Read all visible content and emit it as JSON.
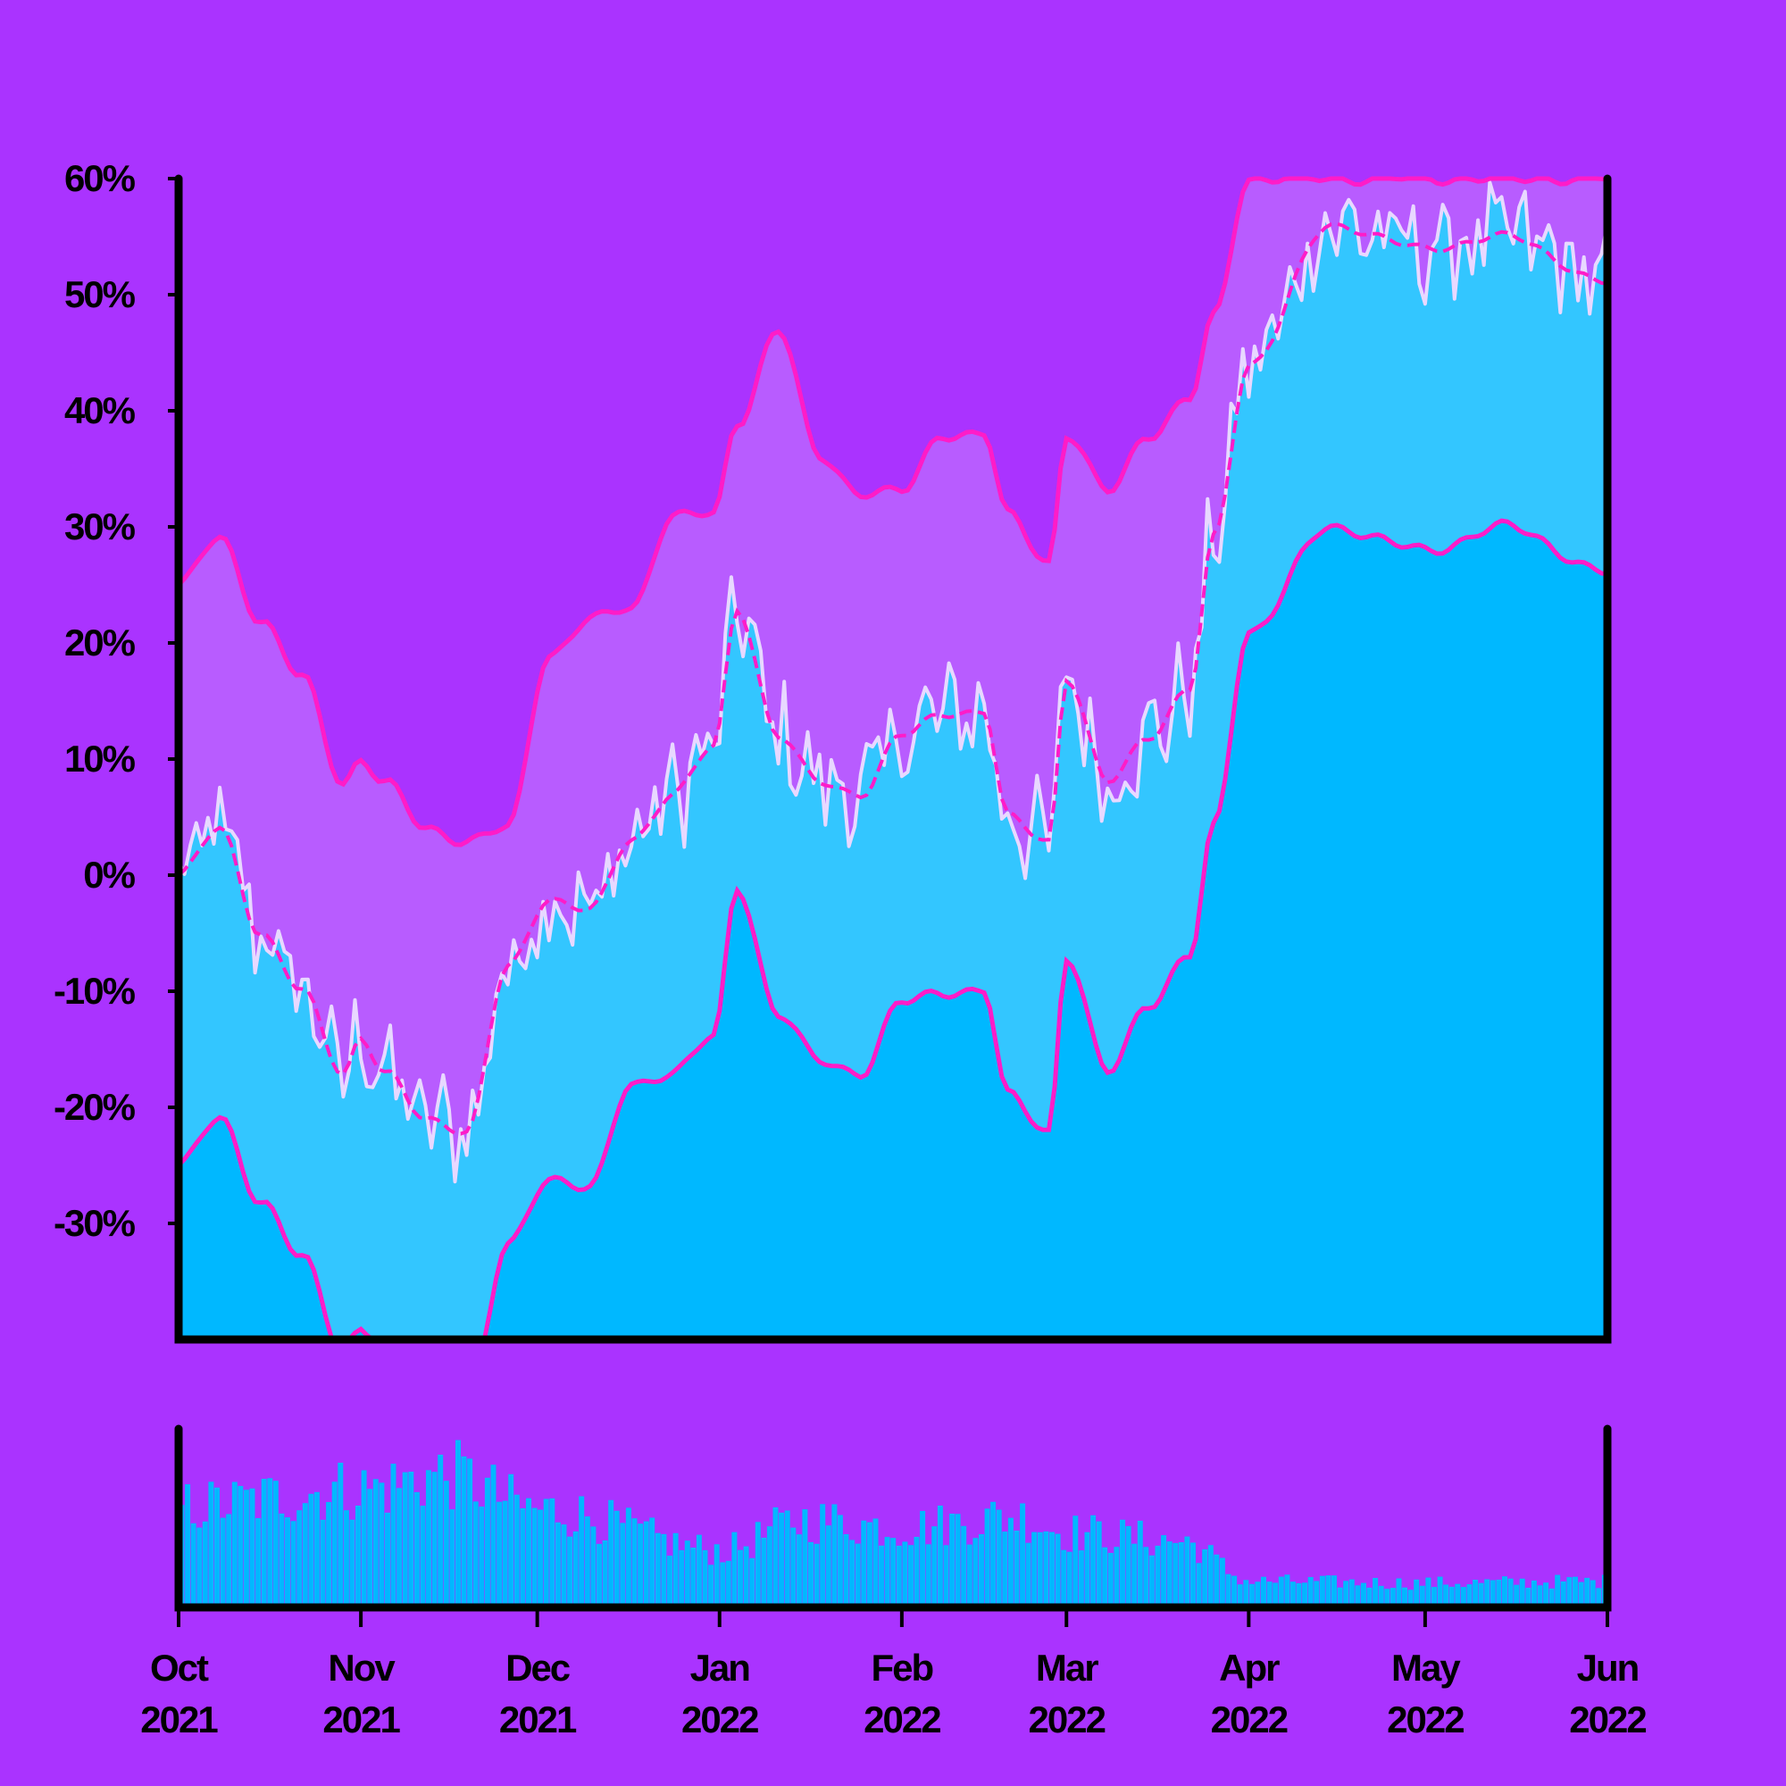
{
  "colors": {
    "background": "#aa33ff",
    "band_outer": "#b85cff",
    "band_inner": "#33c6ff",
    "area_lower": "#00b8ff",
    "noisy_line": "#e8d8ff",
    "accent_line": "#ff1cc8",
    "axis": "#000000",
    "volume_bars": "#00b8ff"
  },
  "chart_data": [
    {
      "type": "area",
      "title": "",
      "xlabel": "",
      "ylabel": "",
      "x_unit": "date",
      "x_range": [
        "2021-10-01",
        "2022-06-01"
      ],
      "ylim": [
        -40,
        60
      ],
      "y_unit": "%",
      "grid": false,
      "legend": "none",
      "yticks": [
        {
          "value": 60,
          "label": "60%"
        },
        {
          "value": 50,
          "label": "50%"
        },
        {
          "value": 40,
          "label": "40%"
        },
        {
          "value": 30,
          "label": "30%"
        },
        {
          "value": 20,
          "label": "20%"
        },
        {
          "value": 10,
          "label": "10%"
        },
        {
          "value": 0,
          "label": "0%"
        },
        {
          "value": -10,
          "label": "-10%"
        },
        {
          "value": -20,
          "label": "-20%"
        },
        {
          "value": -30,
          "label": "-30%"
        }
      ],
      "series": [
        {
          "role": "upper-band",
          "x": [
            "2021-10-01",
            "2021-10-08",
            "2021-10-15",
            "2021-10-22",
            "2021-10-29",
            "2021-11-01",
            "2021-11-05",
            "2021-11-12",
            "2021-11-19",
            "2021-11-26",
            "2021-12-03",
            "2021-12-10",
            "2021-12-17",
            "2021-12-24",
            "2021-12-31",
            "2022-01-04",
            "2022-01-11",
            "2022-01-18",
            "2022-01-25",
            "2022-02-01",
            "2022-02-08",
            "2022-02-15",
            "2022-02-19",
            "2022-02-26",
            "2022-03-01",
            "2022-03-08",
            "2022-03-15",
            "2022-03-22",
            "2022-03-26",
            "2022-04-01",
            "2022-04-15",
            "2022-05-01",
            "2022-05-15",
            "2022-06-01"
          ],
          "values": [
            25,
            29,
            22,
            17,
            8,
            10,
            8,
            4,
            3,
            4,
            19,
            22,
            23,
            31,
            31,
            39,
            47,
            36,
            33,
            33,
            38,
            38,
            31,
            27,
            38,
            33,
            38,
            41,
            48,
            60,
            60,
            60,
            60,
            60
          ]
        },
        {
          "role": "middle-line",
          "x": [
            "2021-10-01",
            "2021-10-08",
            "2021-10-15",
            "2021-10-22",
            "2021-10-29",
            "2021-11-01",
            "2021-11-05",
            "2021-11-12",
            "2021-11-19",
            "2021-11-26",
            "2021-12-03",
            "2021-12-10",
            "2021-12-17",
            "2021-12-24",
            "2021-12-31",
            "2022-01-04",
            "2022-01-11",
            "2022-01-18",
            "2022-01-25",
            "2022-02-01",
            "2022-02-08",
            "2022-02-15",
            "2022-02-19",
            "2022-02-26",
            "2022-03-01",
            "2022-03-08",
            "2022-03-15",
            "2022-03-22",
            "2022-03-26",
            "2022-04-01",
            "2022-04-15",
            "2022-05-01",
            "2022-05-15",
            "2022-06-01"
          ],
          "values": [
            0,
            4,
            -5,
            -10,
            -17,
            -14,
            -17,
            -21,
            -22,
            -8,
            -2,
            -3,
            3,
            7,
            11,
            23,
            12,
            8,
            7,
            12,
            14,
            14,
            5,
            3,
            17,
            8,
            12,
            16,
            29,
            44,
            56,
            54,
            55,
            51
          ]
        },
        {
          "role": "lower-band",
          "x": [
            "2021-10-01",
            "2021-10-08",
            "2021-10-15",
            "2021-10-22",
            "2021-10-29",
            "2021-11-01",
            "2021-11-05",
            "2021-11-12",
            "2021-11-19",
            "2021-11-26",
            "2021-12-03",
            "2021-12-10",
            "2021-12-17",
            "2021-12-24",
            "2021-12-31",
            "2022-01-04",
            "2022-01-11",
            "2022-01-18",
            "2022-01-25",
            "2022-02-01",
            "2022-02-08",
            "2022-02-15",
            "2022-02-19",
            "2022-02-26",
            "2022-03-01",
            "2022-03-08",
            "2022-03-15",
            "2022-03-22",
            "2022-03-26",
            "2022-04-01",
            "2022-04-15",
            "2022-05-01",
            "2022-05-15",
            "2022-06-01"
          ],
          "values": [
            -25,
            -21,
            -28,
            -33,
            -41,
            -39,
            -41,
            -45,
            -46,
            -32,
            -26,
            -27,
            -18,
            -17,
            -14,
            -1,
            -12,
            -16,
            -17,
            -11,
            -10,
            -10,
            -19,
            -22,
            -7,
            -17,
            -11,
            -7,
            4,
            21,
            30,
            28,
            30,
            26
          ]
        }
      ]
    },
    {
      "type": "bar",
      "title": "",
      "x_range": [
        "2021-10-01",
        "2022-06-01"
      ],
      "legend": "none",
      "grid": false,
      "xticks": [
        {
          "x": "2021-10-01",
          "line1": "Oct",
          "line2": "2021"
        },
        {
          "x": "2021-11-01",
          "line1": "Nov",
          "line2": "2021"
        },
        {
          "x": "2021-12-01",
          "line1": "Dec",
          "line2": "2021"
        },
        {
          "x": "2022-01-01",
          "line1": "Jan",
          "line2": "2022"
        },
        {
          "x": "2022-02-01",
          "line1": "Feb",
          "line2": "2022"
        },
        {
          "x": "2022-03-01",
          "line1": "Mar",
          "line2": "2022"
        },
        {
          "x": "2022-04-01",
          "line1": "Apr",
          "line2": "2022"
        },
        {
          "x": "2022-05-01",
          "line1": "May",
          "line2": "2022"
        },
        {
          "x": "2022-06-01",
          "line1": "Jun",
          "line2": "2022"
        }
      ],
      "level_trend": {
        "x": [
          "2021-10-01",
          "2021-11-01",
          "2021-11-15",
          "2021-12-01",
          "2022-01-01",
          "2022-01-15",
          "2022-02-01",
          "2022-02-20",
          "2022-03-01",
          "2022-03-20",
          "2022-04-01",
          "2022-05-01",
          "2022-06-01"
        ],
        "values": [
          0.58,
          0.68,
          0.76,
          0.56,
          0.33,
          0.5,
          0.46,
          0.52,
          0.43,
          0.38,
          0.15,
          0.14,
          0.15
        ]
      }
    }
  ]
}
